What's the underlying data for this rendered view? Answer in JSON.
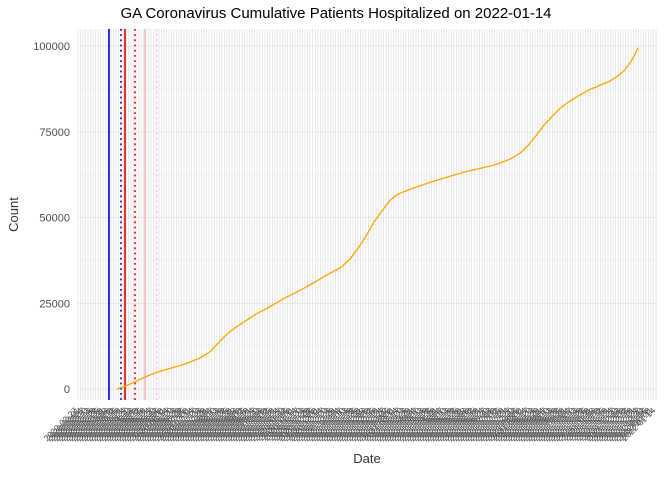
{
  "chart_data": {
    "type": "line",
    "title": "GA Coronavirus Cumulative Patients Hospitalized on 2022-01-14",
    "xlabel": "Date",
    "ylabel": "Count",
    "ylim": [
      0,
      100000
    ],
    "y_ticks": [
      0,
      25000,
      50000,
      75000,
      100000
    ],
    "y_minor_step": 12500,
    "grid": true,
    "legend_position": "none",
    "x_ticks": {
      "start": "2020-02-27",
      "end": "2022-01-14",
      "step_days": 3
    },
    "series": [
      {
        "name": "Cumulative patients hospitalized",
        "color": "#FFA500",
        "points": [
          [
            "2020-03-17",
            0
          ],
          [
            "2020-03-27",
            800
          ],
          [
            "2020-04-09",
            2100
          ],
          [
            "2020-04-22",
            3500
          ],
          [
            "2020-05-07",
            4900
          ],
          [
            "2020-05-24",
            6000
          ],
          [
            "2020-06-12",
            7300
          ],
          [
            "2020-07-01",
            9000
          ],
          [
            "2020-07-14",
            10800
          ],
          [
            "2020-07-24",
            13200
          ],
          [
            "2020-08-04",
            15800
          ],
          [
            "2020-08-14",
            17600
          ],
          [
            "2020-08-27",
            19600
          ],
          [
            "2020-09-11",
            21800
          ],
          [
            "2020-09-29",
            24000
          ],
          [
            "2020-10-18",
            26500
          ],
          [
            "2020-11-07",
            28800
          ],
          [
            "2020-11-26",
            31200
          ],
          [
            "2020-12-09",
            33000
          ],
          [
            "2020-12-21",
            34500
          ],
          [
            "2020-12-30",
            35600
          ],
          [
            "2021-01-10",
            38000
          ],
          [
            "2021-01-20",
            41000
          ],
          [
            "2021-01-30",
            44500
          ],
          [
            "2021-02-09",
            48500
          ],
          [
            "2021-02-20",
            52000
          ],
          [
            "2021-03-02",
            55000
          ],
          [
            "2021-03-12",
            56800
          ],
          [
            "2021-03-25",
            58000
          ],
          [
            "2021-04-09",
            59200
          ],
          [
            "2021-04-29",
            60700
          ],
          [
            "2021-05-18",
            62000
          ],
          [
            "2021-06-06",
            63300
          ],
          [
            "2021-06-25",
            64300
          ],
          [
            "2021-07-15",
            65400
          ],
          [
            "2021-08-03",
            67000
          ],
          [
            "2021-08-16",
            68800
          ],
          [
            "2021-08-26",
            71000
          ],
          [
            "2021-09-05",
            73800
          ],
          [
            "2021-09-15",
            76800
          ],
          [
            "2021-09-26",
            79500
          ],
          [
            "2021-10-06",
            81800
          ],
          [
            "2021-10-19",
            84000
          ],
          [
            "2021-11-01",
            85800
          ],
          [
            "2021-11-13",
            87300
          ],
          [
            "2021-11-26",
            88500
          ],
          [
            "2021-12-09",
            89800
          ],
          [
            "2021-12-19",
            91200
          ],
          [
            "2021-12-28",
            93000
          ],
          [
            "2022-01-05",
            95500
          ],
          [
            "2022-01-10",
            97500
          ],
          [
            "2022-01-14",
            99400
          ]
        ],
        "x_range_frac": [
          0.0675,
          0.9689
        ]
      }
    ],
    "event_vlines": [
      {
        "x_frac": 0.0536,
        "color": "#0000CD",
        "style": "solid"
      },
      {
        "x_frac": 0.0744,
        "color": "#0000CD",
        "style": "dotted"
      },
      {
        "x_frac": 0.0813,
        "color": "#E60000",
        "style": "solid"
      },
      {
        "x_frac": 0.0986,
        "color": "#E60000",
        "style": "dotted"
      },
      {
        "x_frac": 0.1159,
        "color": "#FFB6C1",
        "style": "solid"
      },
      {
        "x_frac": 0.1367,
        "color": "#FFCDD8",
        "style": "dotted"
      }
    ],
    "colors": {
      "grid": "#E7E7E7",
      "grid_minor": "#EFEFEF",
      "axis_text": "#4D4D4D",
      "x_axis_text": "#555555"
    }
  }
}
